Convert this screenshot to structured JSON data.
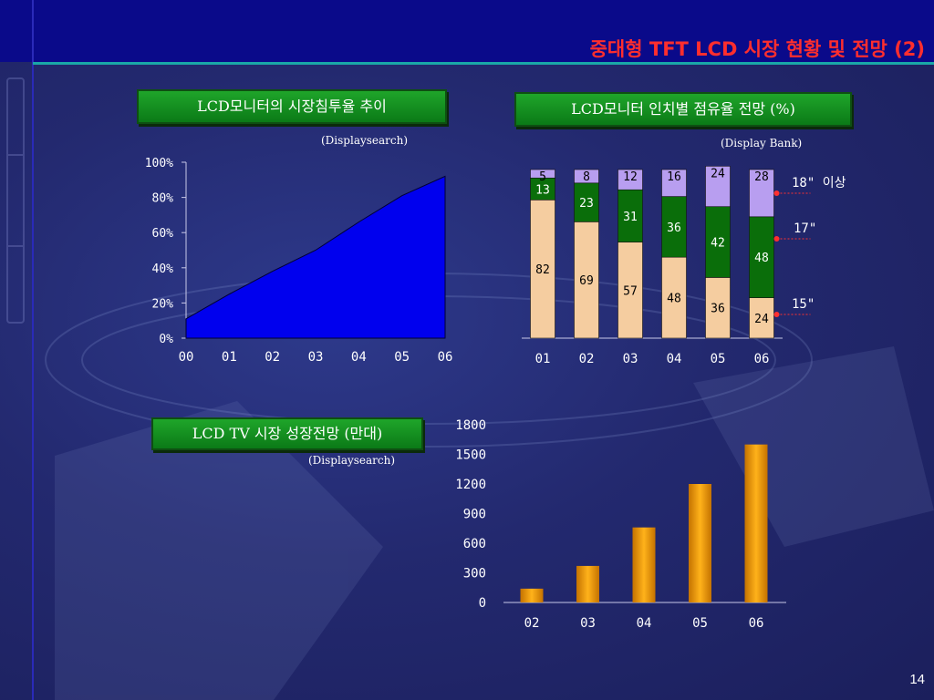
{
  "slide": {
    "title": "중대형 TFT LCD 시장 현황 및 전망 (2)",
    "page_number": "14",
    "colors": {
      "band": "#0a0a8a",
      "accent_line": "#1aa7a7",
      "title": "#ff2e2e",
      "label_box": "#139620"
    }
  },
  "chart_data": [
    {
      "type": "area",
      "title": "LCD모니터의 시장침투율 추이",
      "source": "(Displaysearch)",
      "x": [
        "00",
        "01",
        "02",
        "03",
        "04",
        "05",
        "06"
      ],
      "series": [
        {
          "values": [
            11,
            25,
            38,
            50,
            66,
            81,
            92
          ]
        }
      ],
      "y_ticks": [
        "100%",
        "80%",
        "60%",
        "40%",
        "20%",
        "0%"
      ],
      "ylim": [
        0,
        100
      ],
      "colors": [
        "#0000ee"
      ]
    },
    {
      "type": "bar",
      "stacked": true,
      "title": "LCD모니터 인치별 점유율 전망 (%)",
      "source": "(Display Bank)",
      "categories": [
        "01",
        "02",
        "03",
        "04",
        "05",
        "06"
      ],
      "series": [
        {
          "name": "15\"",
          "values": [
            82,
            69,
            57,
            48,
            36,
            24
          ],
          "color": "#f5cda0"
        },
        {
          "name": "17\"",
          "values": [
            13,
            23,
            31,
            36,
            42,
            48
          ],
          "color": "#0a6e0a"
        },
        {
          "name": "18\" 이상",
          "values": [
            5,
            8,
            12,
            16,
            24,
            28
          ],
          "color": "#b89ef0"
        }
      ],
      "ylim": [
        0,
        100
      ]
    },
    {
      "type": "bar",
      "title": "LCD TV 시장 성장전망 (만대)",
      "source": "(Displaysearch)",
      "categories": [
        "02",
        "03",
        "04",
        "05",
        "06"
      ],
      "values": [
        140,
        370,
        760,
        1200,
        1600
      ],
      "y_ticks": [
        "1800",
        "1500",
        "1200",
        "900",
        "600",
        "300",
        "0"
      ],
      "ylim": [
        0,
        1800
      ],
      "colors": [
        "#f7a300"
      ]
    }
  ]
}
